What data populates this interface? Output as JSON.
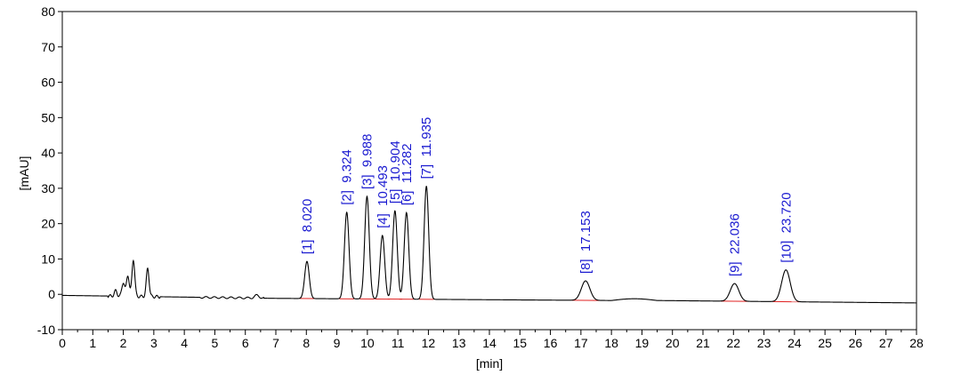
{
  "chart_data": {
    "type": "line",
    "xlabel": "[min]",
    "ylabel": "[mAU]",
    "xlim": [
      0,
      28
    ],
    "ylim": [
      -10,
      80
    ],
    "x_ticks": [
      "0",
      "1",
      "2",
      "3",
      "4",
      "5",
      "6",
      "7",
      "8",
      "9",
      "10",
      "11",
      "12",
      "13",
      "14",
      "15",
      "16",
      "17",
      "18",
      "19",
      "20",
      "21",
      "22",
      "23",
      "24",
      "25",
      "26",
      "27",
      "28"
    ],
    "y_ticks": [
      "-10",
      "0",
      "10",
      "20",
      "30",
      "40",
      "50",
      "60",
      "70",
      "80"
    ],
    "grid": false,
    "legend": "none",
    "colors": {
      "trace": "#000000",
      "baseline": "#e02020",
      "label": "#1a1ad0"
    },
    "peaks": [
      {
        "label": "[1]  8.020",
        "time": 8.02,
        "height": 10.5
      },
      {
        "label": "[2]  9.324",
        "time": 9.324,
        "height": 24.5
      },
      {
        "label": "[3]  9.988",
        "time": 9.988,
        "height": 29
      },
      {
        "label": "[4]  10.493",
        "time": 10.493,
        "height": 18
      },
      {
        "label": "[5]  10.904",
        "time": 10.904,
        "height": 25
      },
      {
        "label": "[6]  11.282",
        "time": 11.282,
        "height": 24.5
      },
      {
        "label": "[7]  11.935",
        "time": 11.935,
        "height": 32
      },
      {
        "label": "[8]  17.153",
        "time": 17.153,
        "height": 5.5
      },
      {
        "label": "[9]  22.036",
        "time": 22.036,
        "height": 5
      },
      {
        "label": "[10]  23.720",
        "time": 23.72,
        "height": 9
      }
    ],
    "unlabeled_peaks": [
      {
        "time": 1.75,
        "height": 1.5
      },
      {
        "time": 2.0,
        "height": 4
      },
      {
        "time": 2.15,
        "height": 6
      },
      {
        "time": 2.33,
        "height": 10.5
      },
      {
        "time": 2.8,
        "height": 8
      },
      {
        "time": 6.38,
        "height": 0.8
      }
    ]
  }
}
